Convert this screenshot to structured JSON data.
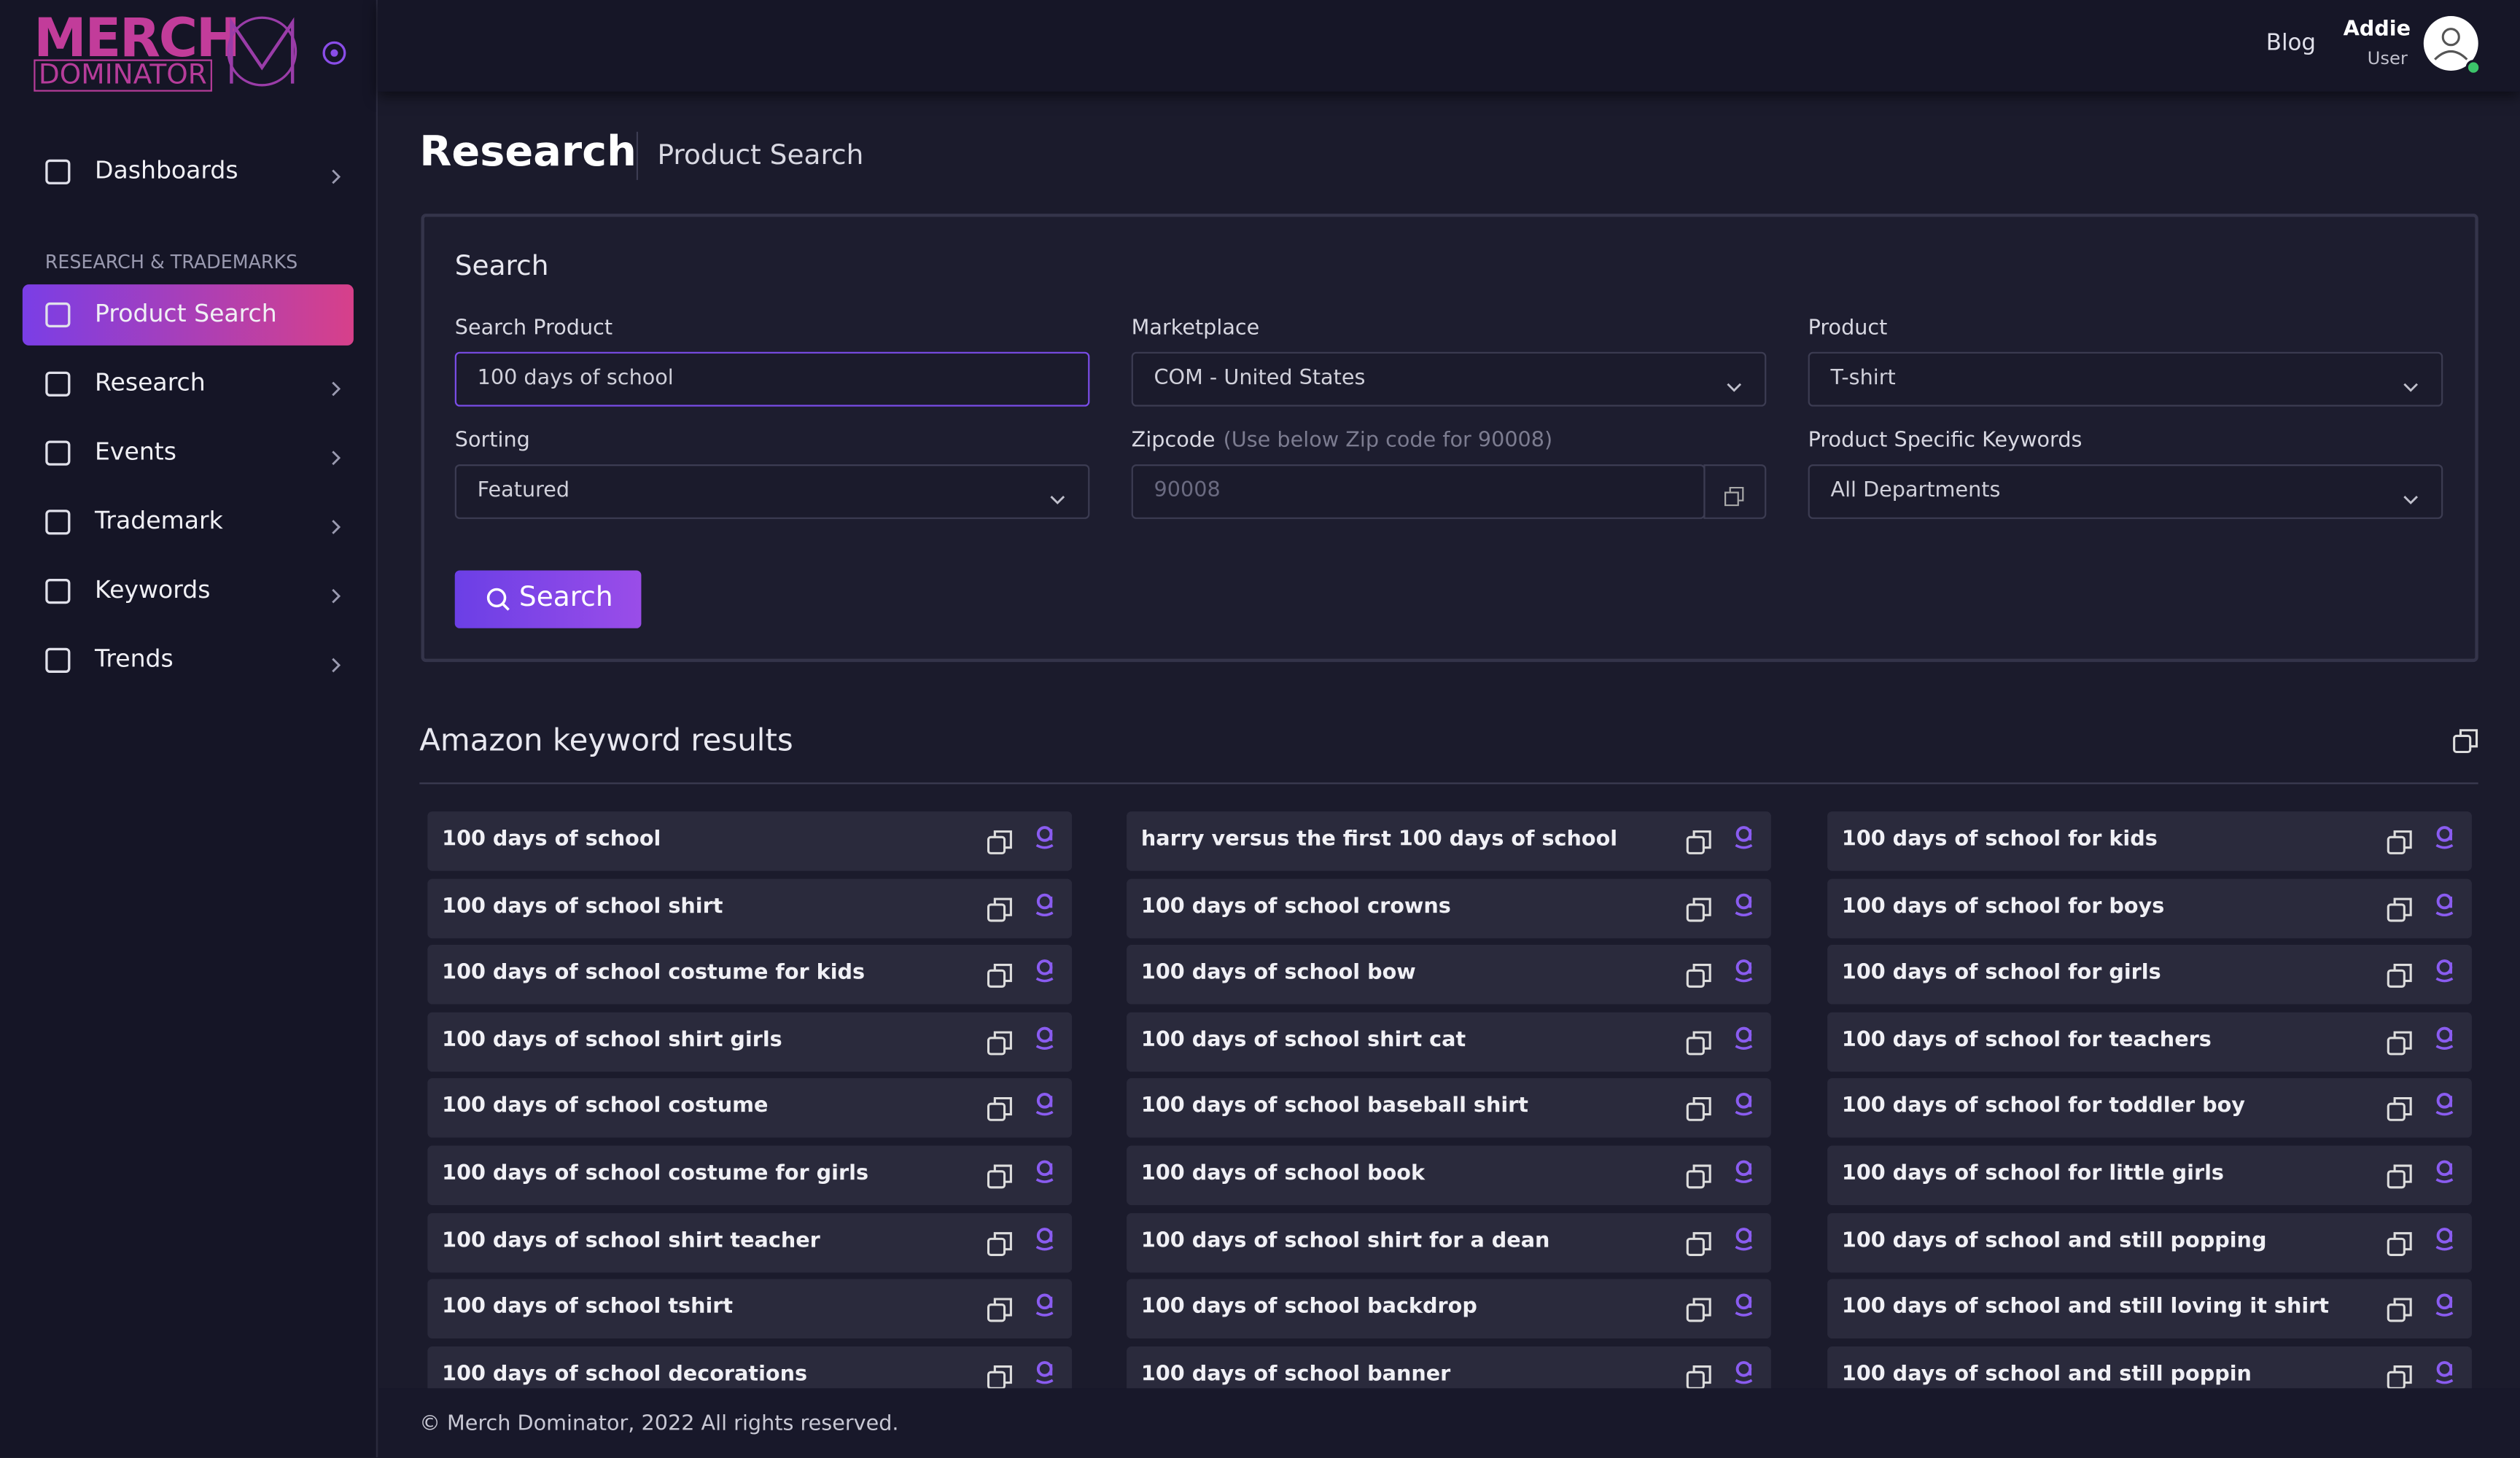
{
  "logo": {
    "line1": "MERCH",
    "line2": "DOMINATOR"
  },
  "sidebar": {
    "top": [
      {
        "label": "Dashboards"
      }
    ],
    "section": "RESEARCH & TRADEMARKS",
    "items": [
      {
        "label": "Product Search",
        "active": true
      },
      {
        "label": "Research"
      },
      {
        "label": "Events"
      },
      {
        "label": "Trademark"
      },
      {
        "label": "Keywords"
      },
      {
        "label": "Trends"
      }
    ]
  },
  "header": {
    "link": "Blog",
    "user_name": "Addie",
    "user_role": "User"
  },
  "page": {
    "title": "Research",
    "breadcrumb": "Product Search"
  },
  "search": {
    "title": "Search",
    "fields": [
      {
        "label": "Search Product",
        "value": "100 days of school",
        "kind": "text"
      },
      {
        "label": "Marketplace",
        "value": "COM - United States",
        "kind": "select"
      },
      {
        "label": "Product",
        "value": "T-shirt",
        "kind": "select"
      },
      {
        "label": "Sorting",
        "value": "Featured",
        "kind": "select"
      },
      {
        "label": "Zipcode",
        "hint": "(Use below Zip code for 90008)",
        "value": "90008",
        "kind": "zip"
      },
      {
        "label": "Product Specific Keywords",
        "value": "All Departments",
        "kind": "select"
      }
    ],
    "button": "Search"
  },
  "results": {
    "title": "Amazon keyword results",
    "columns": [
      [
        "100 days of school",
        "100 days of school shirt",
        "100 days of school costume for kids",
        "100 days of school shirt girls",
        "100 days of school costume",
        "100 days of school costume for girls",
        "100 days of school shirt teacher",
        "100 days of school tshirt",
        "100 days of school decorations"
      ],
      [
        "harry versus the first 100 days of school",
        "100 days of school crowns",
        "100 days of school bow",
        "100 days of school shirt cat",
        "100 days of school baseball shirt",
        "100 days of school book",
        "100 days of school shirt for a dean",
        "100 days of school backdrop",
        "100 days of school banner"
      ],
      [
        "100 days of school for kids",
        "100 days of school for boys",
        "100 days of school for girls",
        "100 days of school for teachers",
        "100 days of school for toddler boy",
        "100 days of school for little girls",
        "100 days of school and still popping",
        "100 days of school and still loving it shirt",
        "100 days of school and still poppin"
      ]
    ]
  },
  "footer": "© Merch Dominator, 2022 All rights reserved."
}
